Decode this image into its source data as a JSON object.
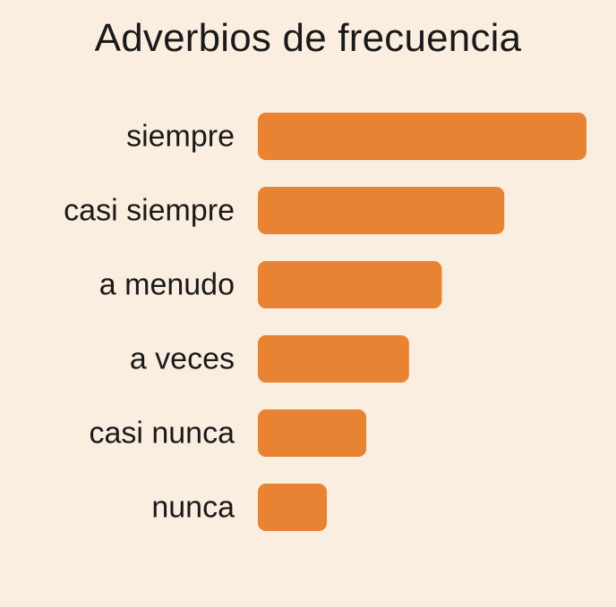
{
  "colors": {
    "background": "#faeee0",
    "bar": "#e88334",
    "text": "#1a1a1a"
  },
  "chart_data": {
    "type": "bar",
    "orientation": "horizontal",
    "title": "Adverbios de frecuencia",
    "categories": [
      "siempre",
      "casi siempre",
      "a menudo",
      "a veces",
      "casi nunca",
      "nunca"
    ],
    "values": [
      100,
      75,
      56,
      46,
      33,
      21
    ],
    "xlim": [
      0,
      100
    ],
    "grid": false,
    "legend": "none"
  }
}
